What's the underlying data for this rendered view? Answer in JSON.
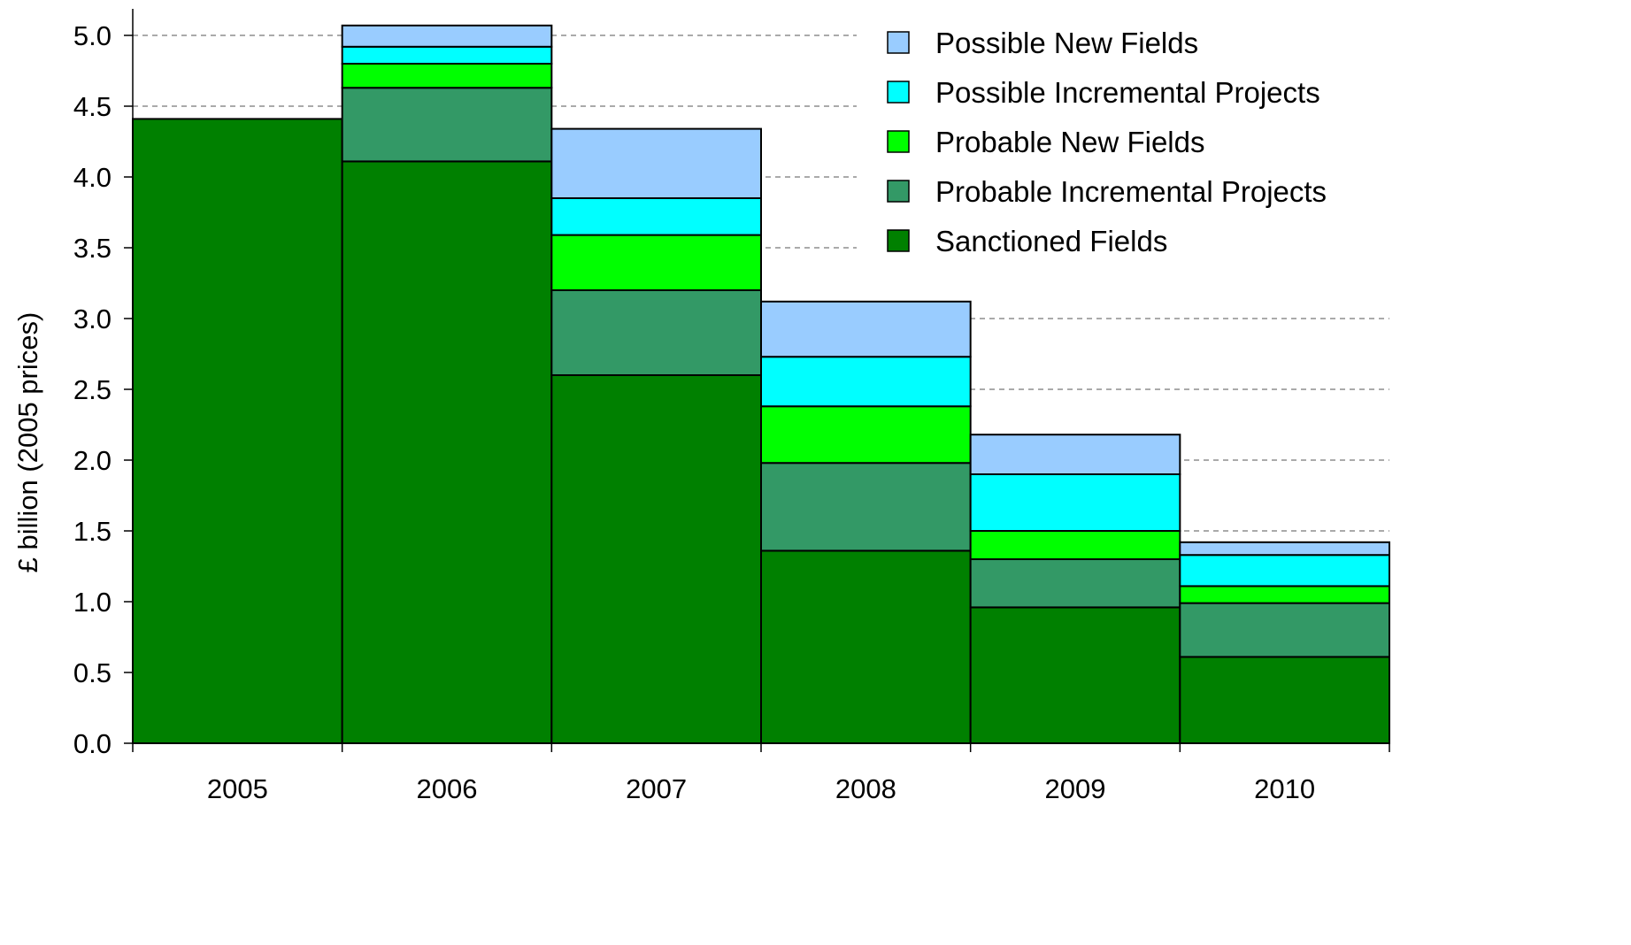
{
  "chart_data": {
    "type": "bar",
    "stacked": true,
    "title": "",
    "xlabel": "",
    "ylabel": "£ billion (2005 prices)",
    "ylim": [
      0,
      5.0
    ],
    "yticks": [
      "0.0",
      "0.5",
      "1.0",
      "1.5",
      "2.0",
      "2.5",
      "3.0",
      "3.5",
      "4.0",
      "4.5",
      "5.0"
    ],
    "grid": "horizontal dashed",
    "legend_position": "top-right",
    "categories": [
      "2005",
      "2006",
      "2007",
      "2008",
      "2009",
      "2010"
    ],
    "series": [
      {
        "name": "Sanctioned Fields",
        "color": "#008000",
        "values": [
          4.41,
          4.11,
          2.6,
          1.36,
          0.96,
          0.61
        ]
      },
      {
        "name": "Probable Incremental Projects",
        "color": "#339966",
        "values": [
          0.0,
          0.52,
          0.6,
          0.62,
          0.34,
          0.38
        ]
      },
      {
        "name": "Probable New Fields",
        "color": "#00ff00",
        "values": [
          0.0,
          0.17,
          0.39,
          0.4,
          0.2,
          0.12
        ]
      },
      {
        "name": "Possible Incremental Projects",
        "color": "#00ffff",
        "values": [
          0.0,
          0.12,
          0.26,
          0.35,
          0.4,
          0.22
        ]
      },
      {
        "name": "Possible New Fields",
        "color": "#99ccff",
        "values": [
          0.0,
          0.15,
          0.49,
          0.39,
          0.28,
          0.09
        ]
      }
    ],
    "legend_order": [
      "Possible New Fields",
      "Possible Incremental Projects",
      "Probable New Fields",
      "Probable Incremental Projects",
      "Sanctioned Fields"
    ]
  }
}
